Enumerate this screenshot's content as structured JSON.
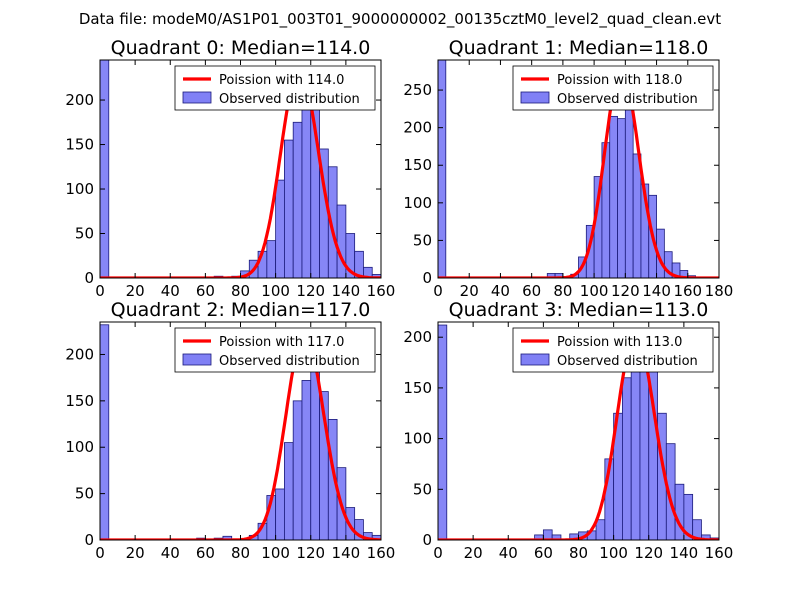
{
  "suptitle": "Data file: modeM0/AS1P01_003T01_9000000002_00135cztM0_level2_quad_clean.evt",
  "colors": {
    "bar_fill": "#8080f5",
    "bar_edge": "#1a1a7a",
    "line": "#ff0000",
    "axis": "#000000"
  },
  "legend_entries": {
    "line_prefix": "Poission with",
    "bars": "Observed distribution"
  },
  "chart_data": [
    {
      "type": "bar",
      "title": "Quadrant 0: Median=114.0",
      "legend_line": "Poission with 114.0",
      "legend_bars": "Observed distribution",
      "legend_position": "top-right",
      "xlim": [
        0,
        160
      ],
      "ylim": [
        0,
        245
      ],
      "xticks": [
        0,
        20,
        40,
        60,
        80,
        100,
        120,
        140,
        160
      ],
      "yticks": [
        0,
        50,
        100,
        150,
        200
      ],
      "mean": 114.0,
      "peak": 235,
      "bins": [
        [
          0,
          245
        ],
        [
          65,
          2
        ],
        [
          75,
          2
        ],
        [
          80,
          8
        ],
        [
          85,
          20
        ],
        [
          90,
          30
        ],
        [
          95,
          42
        ],
        [
          100,
          110
        ],
        [
          105,
          155
        ],
        [
          110,
          175
        ],
        [
          115,
          225
        ],
        [
          120,
          195
        ],
        [
          125,
          145
        ],
        [
          130,
          125
        ],
        [
          135,
          82
        ],
        [
          140,
          50
        ],
        [
          145,
          30
        ],
        [
          150,
          12
        ],
        [
          155,
          4
        ]
      ]
    },
    {
      "type": "bar",
      "title": "Quadrant 1: Median=118.0",
      "legend_line": "Poission with 118.0",
      "legend_bars": "Observed distribution",
      "legend_position": "top-right",
      "xlim": [
        0,
        180
      ],
      "ylim": [
        0,
        290
      ],
      "xticks": [
        0,
        20,
        40,
        60,
        80,
        100,
        120,
        140,
        160,
        180
      ],
      "yticks": [
        0,
        50,
        100,
        150,
        200,
        250
      ],
      "mean": 118.0,
      "peak": 277,
      "bins": [
        [
          0,
          290
        ],
        [
          70,
          6
        ],
        [
          75,
          6
        ],
        [
          85,
          5
        ],
        [
          90,
          28
        ],
        [
          95,
          70
        ],
        [
          100,
          135
        ],
        [
          105,
          180
        ],
        [
          110,
          215
        ],
        [
          115,
          212
        ],
        [
          120,
          262
        ],
        [
          125,
          165
        ],
        [
          130,
          125
        ],
        [
          135,
          110
        ],
        [
          140,
          65
        ],
        [
          145,
          35
        ],
        [
          150,
          20
        ],
        [
          155,
          10
        ],
        [
          160,
          3
        ]
      ]
    },
    {
      "type": "bar",
      "title": "Quadrant 2: Median=117.0",
      "legend_line": "Poission with 117.0",
      "legend_bars": "Observed distribution",
      "legend_position": "top-right",
      "xlim": [
        0,
        160
      ],
      "ylim": [
        0,
        235
      ],
      "xticks": [
        0,
        20,
        40,
        60,
        80,
        100,
        120,
        140,
        160
      ],
      "yticks": [
        0,
        50,
        100,
        150,
        200
      ],
      "mean": 117.0,
      "peak": 222,
      "bins": [
        [
          0,
          232
        ],
        [
          55,
          2
        ],
        [
          65,
          2
        ],
        [
          70,
          4
        ],
        [
          85,
          5
        ],
        [
          90,
          18
        ],
        [
          95,
          48
        ],
        [
          100,
          55
        ],
        [
          105,
          105
        ],
        [
          110,
          150
        ],
        [
          115,
          172
        ],
        [
          120,
          200
        ],
        [
          125,
          160
        ],
        [
          130,
          130
        ],
        [
          135,
          78
        ],
        [
          140,
          35
        ],
        [
          145,
          22
        ],
        [
          150,
          8
        ],
        [
          155,
          5
        ]
      ]
    },
    {
      "type": "bar",
      "title": "Quadrant 3: Median=113.0",
      "legend_line": "Poission with 113.0",
      "legend_bars": "Observed distribution",
      "legend_position": "top-right",
      "xlim": [
        0,
        160
      ],
      "ylim": [
        0,
        215
      ],
      "xticks": [
        0,
        20,
        40,
        60,
        80,
        100,
        120,
        140,
        160
      ],
      "yticks": [
        0,
        50,
        100,
        150,
        200
      ],
      "mean": 113.0,
      "peak": 203,
      "bins": [
        [
          0,
          212
        ],
        [
          55,
          5
        ],
        [
          60,
          10
        ],
        [
          65,
          5
        ],
        [
          75,
          6
        ],
        [
          80,
          8
        ],
        [
          85,
          9
        ],
        [
          90,
          20
        ],
        [
          95,
          80
        ],
        [
          100,
          125
        ],
        [
          105,
          160
        ],
        [
          110,
          175
        ],
        [
          115,
          185
        ],
        [
          120,
          170
        ],
        [
          125,
          125
        ],
        [
          130,
          95
        ],
        [
          135,
          55
        ],
        [
          140,
          45
        ],
        [
          145,
          20
        ],
        [
          150,
          5
        ],
        [
          155,
          2
        ]
      ]
    }
  ]
}
